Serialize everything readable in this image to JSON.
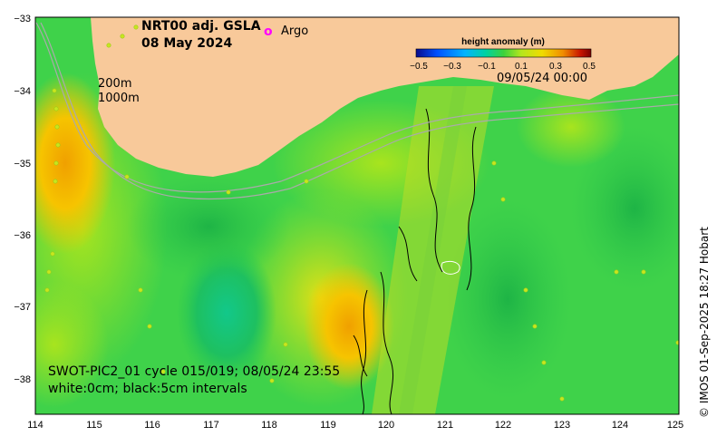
{
  "map": {
    "title_line1": "NRT00 adj. GSLA",
    "title_line2": "08 May 2024",
    "argo_symbol": "o",
    "argo_label": "Argo",
    "isobath_label_1": "200m",
    "isobath_label_2": "1000m",
    "swath_info": "SWOT-PIC2_01 cycle 015/019; 08/05/24 23:55",
    "contour_info": "white:0cm; black:5cm intervals",
    "timestamp": "09/05/24 00:00",
    "credit": "© IMOS 01-Sep-2025 18:27 Hobart",
    "x_ticks": [
      "114",
      "115",
      "116",
      "117",
      "118",
      "119",
      "120",
      "121",
      "122",
      "123",
      "124",
      "125"
    ],
    "y_ticks": [
      "−33",
      "−34",
      "−35",
      "−36",
      "−37",
      "−38"
    ],
    "colors": {
      "land": "#f8c99a",
      "argo": "#ff00ff",
      "ocean_base": "#3fd24a"
    }
  },
  "colorbar": {
    "title": "height anomaly (m)",
    "ticks": [
      "−0.5",
      "−0.3",
      "−0.1",
      "0.1",
      "0.3",
      "0.5"
    ],
    "stops": [
      "#0a0a8c",
      "#0050ff",
      "#00b4ff",
      "#00d2a0",
      "#3cd23c",
      "#b4e61e",
      "#f0dc00",
      "#f08c00",
      "#c81400",
      "#7a0000"
    ]
  }
}
